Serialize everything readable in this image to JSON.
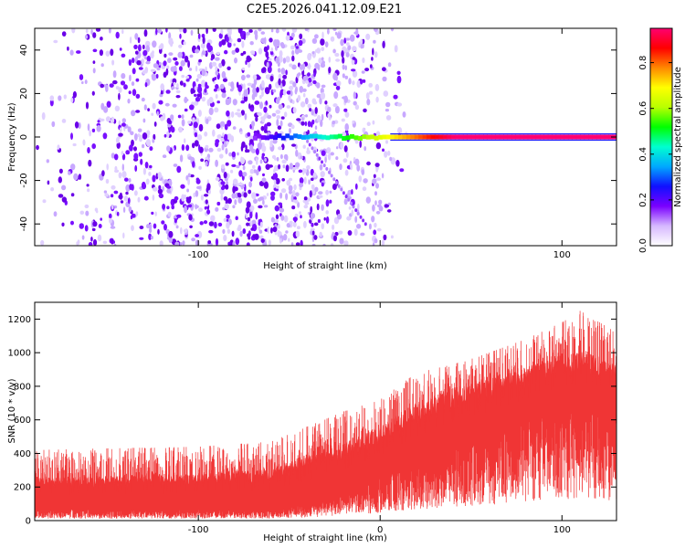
{
  "title": "C2E5.2026.041.12.09.E21",
  "chart_data": [
    {
      "type": "heatmap",
      "name": "spectrogram",
      "xlabel": "Height of straight line (km)",
      "ylabel": "Frequency (Hz)",
      "xlim": [
        -190,
        130
      ],
      "ylim": [
        -50,
        50
      ],
      "xticks": [
        -100,
        0,
        100
      ],
      "xtick_labels": [
        "-100",
        "",
        "100"
      ],
      "yticks": [
        -40,
        -20,
        0,
        20,
        40
      ],
      "ytick_labels": [
        "-40",
        "-20",
        "0",
        "20",
        "40"
      ],
      "colorbar": {
        "label": "Normalized spectral amplitude",
        "range": [
          0,
          0.95
        ],
        "ticks": [
          0.0,
          0.2,
          0.4,
          0.6,
          0.8
        ],
        "tick_labels": [
          "0.0",
          "0.2",
          "0.4",
          "0.6",
          "0.8"
        ],
        "colormap": [
          "#ffffff",
          "#d6b8ff",
          "#7a00ff",
          "#1010ff",
          "#00a8ff",
          "#00ffd0",
          "#00ff00",
          "#b8ff00",
          "#ffff00",
          "#ff8800",
          "#ff0000",
          "#ff0070"
        ]
      },
      "features": {
        "noise_region_x": [
          -190,
          0
        ],
        "carrier_frequency_hz": 0,
        "carrier_start_x": -70,
        "carrier_amplitude_at_start": 0.15,
        "carrier_amplitude_at_end": 0.95,
        "diagonal_streak": {
          "x": [
            -40,
            -8
          ],
          "freq_hz": [
            -2,
            -40
          ]
        }
      }
    },
    {
      "type": "line",
      "name": "snr",
      "xlabel": "Height of straight line (km)",
      "ylabel": "SNR (10 * v/v)",
      "xlim": [
        -190,
        130
      ],
      "ylim": [
        0,
        1300
      ],
      "xticks": [
        -100,
        0,
        100
      ],
      "xtick_labels": [
        "-100",
        "0",
        "100"
      ],
      "yticks": [
        0,
        200,
        400,
        600,
        800,
        1000,
        1200
      ],
      "ytick_labels": [
        "0",
        "200",
        "400",
        "600",
        "800",
        "1000",
        "1200"
      ],
      "color": "#f03535",
      "series": [
        {
          "name": "SNR",
          "x": [
            -190,
            -150,
            -100,
            -60,
            -40,
            -20,
            0,
            20,
            40,
            60,
            80,
            100,
            110,
            130
          ],
          "baseline": [
            60,
            60,
            60,
            60,
            90,
            150,
            230,
            330,
            400,
            470,
            560,
            640,
            650,
            600
          ],
          "mid": [
            150,
            155,
            160,
            175,
            230,
            300,
            380,
            500,
            580,
            650,
            720,
            800,
            810,
            760
          ],
          "peak": [
            420,
            430,
            440,
            470,
            560,
            650,
            720,
            880,
            930,
            1000,
            1080,
            1180,
            1250,
            1120
          ]
        }
      ]
    }
  ]
}
